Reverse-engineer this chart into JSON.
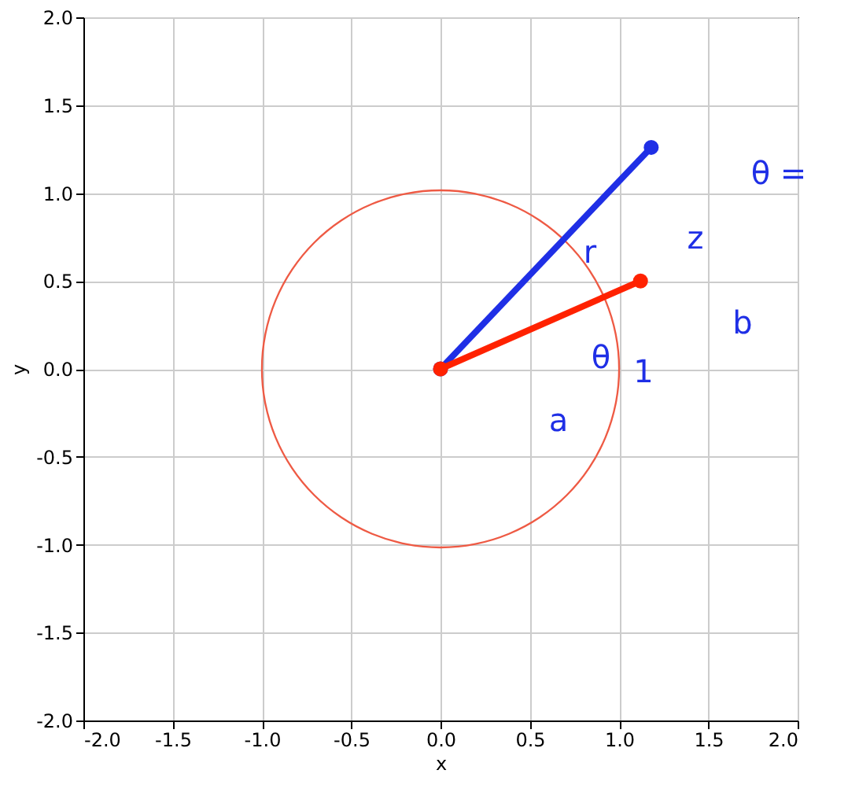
{
  "chart_data": {
    "type": "line",
    "xlabel": "x",
    "ylabel": "y",
    "xlim": [
      -2.0,
      2.0
    ],
    "ylim": [
      -2.0,
      2.0
    ],
    "xticks": [
      {
        "value": -2,
        "label": "-2.0"
      },
      {
        "value": -1.5,
        "label": "-1.5"
      },
      {
        "value": -1,
        "label": "-1.0"
      },
      {
        "value": -0.5,
        "label": "-0.5"
      },
      {
        "value": 0,
        "label": "0.0"
      },
      {
        "value": 0.5,
        "label": "0.5"
      },
      {
        "value": 1,
        "label": "1.0"
      },
      {
        "value": 1.5,
        "label": "1.5"
      },
      {
        "value": 2,
        "label": "2.0"
      }
    ],
    "yticks": [
      {
        "value": -2,
        "label": "-2.0"
      },
      {
        "value": -1.5,
        "label": "-1.5"
      },
      {
        "value": -1,
        "label": "-1.0"
      },
      {
        "value": -0.5,
        "label": "-0.5"
      },
      {
        "value": 0,
        "label": "0.0"
      },
      {
        "value": 0.5,
        "label": "0.5"
      },
      {
        "value": 1,
        "label": "1.0"
      },
      {
        "value": 1.5,
        "label": "1.5"
      },
      {
        "value": 2,
        "label": "2.0"
      }
    ],
    "grid": true,
    "series": [
      {
        "color": "#1f2fe6",
        "line_style": "solid",
        "marker": "circle",
        "x": [
          0,
          1.18
        ],
        "values": [
          0,
          1.26
        ]
      },
      {
        "color": "#ff2200",
        "line_style": "solid",
        "marker": "circle",
        "x": [
          0,
          1.12
        ],
        "values": [
          0,
          0.5
        ]
      }
    ],
    "annotations": [
      "r",
      "θ",
      "a",
      "1",
      "b",
      "z",
      "θ ="
    ]
  }
}
